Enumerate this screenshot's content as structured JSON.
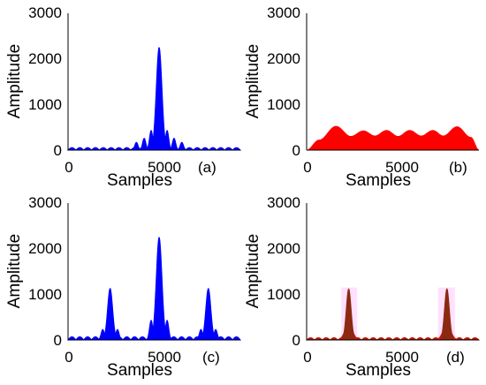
{
  "chart_data": [
    {
      "panel": "(a)",
      "type": "area",
      "xlabel": "Samples",
      "ylabel": "Amplitude",
      "xlim": [
        0,
        8192
      ],
      "ylim": [
        0,
        3000
      ],
      "xticks": [
        "0",
        "5000"
      ],
      "yticks": [
        "0",
        "1000",
        "2000",
        "3000"
      ],
      "grid": false,
      "series": [
        {
          "color": "#0000ff",
          "fill": "#0000ff",
          "peaks": [
            {
              "x": 4330,
              "y": 2250,
              "width": 190
            },
            {
              "x": 3950,
              "y": 430,
              "width": 110
            },
            {
              "x": 4710,
              "y": 430,
              "width": 110
            },
            {
              "x": 3620,
              "y": 260,
              "width": 110
            },
            {
              "x": 5040,
              "y": 260,
              "width": 110
            },
            {
              "x": 3250,
              "y": 170,
              "width": 110
            },
            {
              "x": 5410,
              "y": 170,
              "width": 110
            }
          ],
          "ripple": {
            "amplitude": 55,
            "lobes": 22
          }
        }
      ]
    },
    {
      "panel": "(b)",
      "type": "area",
      "xlabel": "Samples",
      "ylabel": "Amplitude",
      "xlim": [
        0,
        8192
      ],
      "ylim": [
        0,
        3000
      ],
      "xticks": [
        "0",
        "5000"
      ],
      "yticks": [
        "0",
        "1000",
        "2000",
        "3000"
      ],
      "grid": false,
      "series": [
        {
          "color": "#ff0000",
          "fill": "#ff0000",
          "envelope": [
            [
              0,
              0
            ],
            [
              600,
              220
            ],
            [
              1400,
              520
            ],
            [
              2100,
              300
            ],
            [
              2700,
              420
            ],
            [
              3250,
              310
            ],
            [
              3800,
              430
            ],
            [
              4350,
              300
            ],
            [
              4900,
              430
            ],
            [
              5450,
              310
            ],
            [
              6000,
              430
            ],
            [
              6500,
              310
            ],
            [
              7150,
              510
            ],
            [
              7800,
              280
            ],
            [
              8192,
              0
            ]
          ]
        }
      ]
    },
    {
      "panel": "(c)",
      "type": "area",
      "xlabel": "Samples",
      "ylabel": "Amplitude",
      "xlim": [
        0,
        8192
      ],
      "ylim": [
        0,
        3000
      ],
      "xticks": [
        "0",
        "5000"
      ],
      "yticks": [
        "0",
        "1000",
        "2000",
        "3000"
      ],
      "grid": false,
      "series": [
        {
          "color": "#0000ff",
          "fill": "#0000ff",
          "peaks": [
            {
              "x": 4330,
              "y": 2250,
              "width": 190
            },
            {
              "x": 2000,
              "y": 1130,
              "width": 170
            },
            {
              "x": 6670,
              "y": 1130,
              "width": 170
            },
            {
              "x": 3950,
              "y": 430,
              "width": 110
            },
            {
              "x": 4710,
              "y": 430,
              "width": 110
            },
            {
              "x": 2350,
              "y": 230,
              "width": 110
            },
            {
              "x": 6320,
              "y": 230,
              "width": 110
            },
            {
              "x": 1650,
              "y": 230,
              "width": 110
            },
            {
              "x": 7020,
              "y": 230,
              "width": 110
            }
          ],
          "ripple": {
            "amplitude": 70,
            "lobes": 22
          }
        }
      ]
    },
    {
      "panel": "(d)",
      "type": "area",
      "xlabel": "Samples",
      "ylabel": "Amplitude",
      "xlim": [
        0,
        8192
      ],
      "ylim": [
        0,
        3000
      ],
      "xticks": [
        "0",
        "5000"
      ],
      "yticks": [
        "0",
        "1000",
        "2000",
        "3000"
      ],
      "grid": false,
      "highlight_ranges": [
        [
          1650,
          2400
        ],
        [
          6250,
          7050
        ]
      ],
      "highlight_color": "#ffccff",
      "series": [
        {
          "color": "#ff0000",
          "fill": "#ff0000",
          "peaks": [
            {
              "x": 2000,
              "y": 330,
              "width": 260
            },
            {
              "x": 6670,
              "y": 330,
              "width": 260
            }
          ],
          "ripple": {
            "amplitude": 50,
            "lobes": 22
          }
        },
        {
          "color": "#8b2a10",
          "fill": "#8b2a10",
          "peaks": [
            {
              "x": 2000,
              "y": 1120,
              "width": 160
            },
            {
              "x": 6670,
              "y": 1120,
              "width": 160
            }
          ],
          "ripple": {
            "amplitude": 30,
            "lobes": 22
          }
        }
      ]
    }
  ]
}
